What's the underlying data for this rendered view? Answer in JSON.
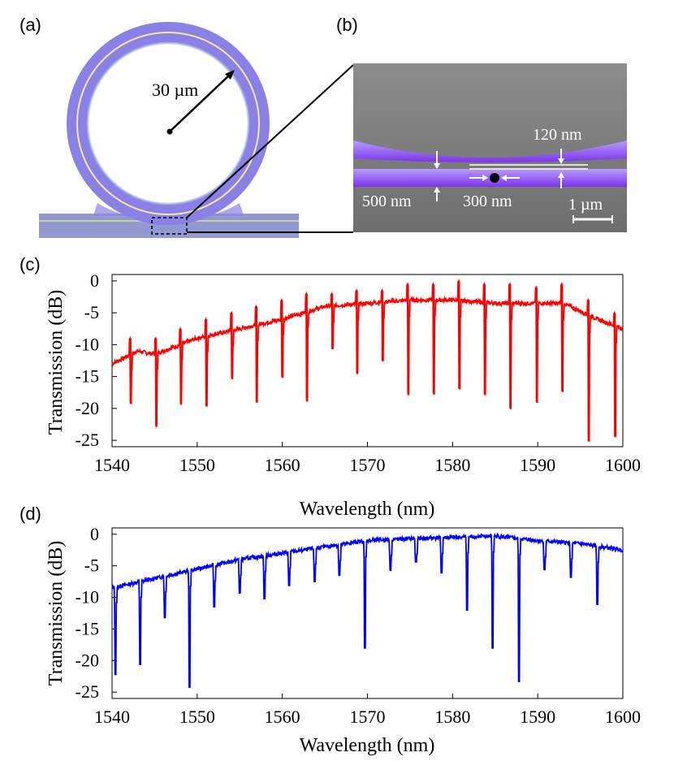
{
  "panels": {
    "a": "(a)",
    "b": "(b)",
    "c": "(c)",
    "d": "(d)"
  },
  "panel_a": {
    "radius_label": "30 µm"
  },
  "panel_b": {
    "gap_label": "120 nm",
    "width_label": "500 nm",
    "bar_label": "300 nm",
    "scale_label": "1 µm"
  },
  "colors": {
    "chart_c": "#ff0000",
    "chart_d": "#0000ff",
    "ring": "#8a80e6",
    "sem_bg": "#8a8a8a",
    "waveguide": "#8a3cf0"
  },
  "chart_data": [
    {
      "id": "c",
      "type": "line",
      "xlabel": "Wavelength (nm)",
      "ylabel": "Transmission (dB)",
      "xlim": [
        1540,
        1600
      ],
      "ylim": [
        -26,
        1
      ],
      "xticks": [
        1540,
        1550,
        1560,
        1570,
        1580,
        1590,
        1600
      ],
      "yticks": [
        0,
        -5,
        -10,
        -15,
        -20,
        -25
      ],
      "baseline": [
        [
          1540,
          -13
        ],
        [
          1543,
          -11
        ],
        [
          1545,
          -11.5
        ],
        [
          1550,
          -9
        ],
        [
          1555,
          -7.5
        ],
        [
          1560,
          -6
        ],
        [
          1565,
          -4
        ],
        [
          1570,
          -3.5
        ],
        [
          1575,
          -3
        ],
        [
          1580,
          -3
        ],
        [
          1585,
          -3.5
        ],
        [
          1590,
          -3.5
        ],
        [
          1593,
          -3.5
        ],
        [
          1597,
          -6
        ],
        [
          1600,
          -7.5
        ]
      ],
      "resonances": [
        {
          "x": 1542.2,
          "dip": -19.2,
          "peak": -9
        },
        {
          "x": 1545.2,
          "dip": -22.8,
          "peak": -9
        },
        {
          "x": 1548.1,
          "dip": -19.3,
          "peak": -7.5
        },
        {
          "x": 1551.1,
          "dip": -19.6,
          "peak": -6
        },
        {
          "x": 1554.1,
          "dip": -15.3,
          "peak": -5
        },
        {
          "x": 1557.0,
          "dip": -19.0,
          "peak": -4
        },
        {
          "x": 1560.0,
          "dip": -15.1,
          "peak": -3
        },
        {
          "x": 1562.9,
          "dip": -18.8,
          "peak": -2
        },
        {
          "x": 1565.9,
          "dip": -10.6,
          "peak": -2
        },
        {
          "x": 1568.8,
          "dip": -14.5,
          "peak": -1.5
        },
        {
          "x": 1571.8,
          "dip": -12.5,
          "peak": -1.5
        },
        {
          "x": 1574.8,
          "dip": -17.8,
          "peak": -0.5
        },
        {
          "x": 1577.8,
          "dip": -17.7,
          "peak": -0.5
        },
        {
          "x": 1580.8,
          "dip": -16.9,
          "peak": 0
        },
        {
          "x": 1583.8,
          "dip": -17.8,
          "peak": -0.5
        },
        {
          "x": 1586.8,
          "dip": -20.0,
          "peak": -0.5
        },
        {
          "x": 1589.9,
          "dip": -19.0,
          "peak": -1
        },
        {
          "x": 1592.9,
          "dip": -17.3,
          "peak": -0.5
        },
        {
          "x": 1596.0,
          "dip": -25.1,
          "peak": -3
        },
        {
          "x": 1599.1,
          "dip": -24.4,
          "peak": -5
        }
      ]
    },
    {
      "id": "d",
      "type": "line",
      "xlabel": "Wavelength (nm)",
      "ylabel": "Transmission (dB)",
      "xlim": [
        1540,
        1600
      ],
      "ylim": [
        -26,
        1
      ],
      "xticks": [
        1540,
        1550,
        1560,
        1570,
        1580,
        1590,
        1600
      ],
      "yticks": [
        0,
        -5,
        -10,
        -15,
        -20,
        -25
      ],
      "baseline": [
        [
          1540,
          -8.5
        ],
        [
          1545,
          -7
        ],
        [
          1550,
          -5.5
        ],
        [
          1555,
          -4
        ],
        [
          1560,
          -3
        ],
        [
          1565,
          -2
        ],
        [
          1570,
          -1
        ],
        [
          1575,
          -0.7
        ],
        [
          1580,
          -0.5
        ],
        [
          1585,
          -0.3
        ],
        [
          1590,
          -1
        ],
        [
          1595,
          -1.5
        ],
        [
          1600,
          -2.5
        ]
      ],
      "resonances": [
        {
          "x": 1540.4,
          "dip": -22.2
        },
        {
          "x": 1543.3,
          "dip": -20.6
        },
        {
          "x": 1546.2,
          "dip": -13.2
        },
        {
          "x": 1549.1,
          "dip": -24.2
        },
        {
          "x": 1552.0,
          "dip": -11.5
        },
        {
          "x": 1555.0,
          "dip": -9.3
        },
        {
          "x": 1557.9,
          "dip": -10.2
        },
        {
          "x": 1560.8,
          "dip": -8.1
        },
        {
          "x": 1563.8,
          "dip": -7.5
        },
        {
          "x": 1566.7,
          "dip": -6.5
        },
        {
          "x": 1569.7,
          "dip": -18.0
        },
        {
          "x": 1572.7,
          "dip": -5.7
        },
        {
          "x": 1575.7,
          "dip": -4.4
        },
        {
          "x": 1578.7,
          "dip": -6.1
        },
        {
          "x": 1581.7,
          "dip": -12.0
        },
        {
          "x": 1584.7,
          "dip": -18.0
        },
        {
          "x": 1587.8,
          "dip": -23.3
        },
        {
          "x": 1590.8,
          "dip": -5.6
        },
        {
          "x": 1593.9,
          "dip": -6.8
        },
        {
          "x": 1597.0,
          "dip": -11.1
        }
      ]
    }
  ]
}
